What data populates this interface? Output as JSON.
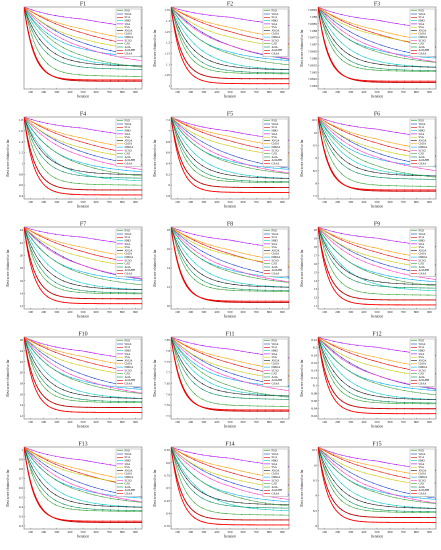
{
  "chart_data": [
    {
      "type": "line",
      "title": "F1",
      "xlabel": "Iteration",
      "ylabel": "",
      "x_ticks": [
        "100",
        "200",
        "300",
        "400",
        "500",
        "600",
        "700",
        "800",
        "900"
      ],
      "y_ticks": [],
      "series": []
    },
    {
      "type": "line",
      "title": "F2",
      "xlabel": "Iteration",
      "ylabel": "Best score obtained so far",
      "x_ticks": [
        "100",
        "200",
        "300",
        "400",
        "500",
        "600",
        "700",
        "800",
        "900"
      ],
      "y_ticks": [
        "1.35",
        "1.3",
        "1.25",
        "1.2",
        "1.15",
        "1.1",
        "1.05",
        "1"
      ],
      "series": []
    },
    {
      "type": "line",
      "title": "F3",
      "xlabel": "Iteration",
      "ylabel": "Best score obtained so far",
      "x_ticks": [
        "100",
        "200",
        "300",
        "400",
        "500",
        "600",
        "700",
        "800",
        "900"
      ],
      "y_ticks": [
        "7.0895",
        "7.089",
        "7.0885",
        "7.088",
        "7.0875",
        "7.087",
        "7.0865",
        "7.086",
        "7.0855",
        "7.085",
        "7.0845",
        "7.084"
      ],
      "series": []
    },
    {
      "type": "line",
      "title": "F4",
      "xlabel": "Iteration",
      "ylabel": "Best score obtained so far",
      "x_ticks": [
        "100",
        "200",
        "300",
        "400",
        "500",
        "600",
        "700",
        "800",
        "900"
      ],
      "y_ticks": [
        "1.8",
        "1.6",
        "1.4",
        "1.2",
        "1",
        "0.8",
        "0.6",
        "0.4"
      ],
      "series": []
    },
    {
      "type": "line",
      "title": "F5",
      "xlabel": "Iteration",
      "ylabel": "Best score obtained so far",
      "x_ticks": [
        "100",
        "200",
        "300",
        "400",
        "500",
        "600",
        "700",
        "800",
        "900"
      ],
      "y_ticks": [
        "7.2",
        "7",
        "6.8",
        "6.6",
        "6.4",
        "6.2",
        "6",
        "5.8"
      ],
      "series": []
    },
    {
      "type": "line",
      "title": "F6",
      "xlabel": "Iteration",
      "ylabel": "Best score obtained so far",
      "x_ticks": [
        "100",
        "200",
        "300",
        "400",
        "500",
        "600",
        "700",
        "800",
        "900"
      ],
      "y_ticks": [
        "10.5",
        "10",
        "9.5",
        "9",
        "8.5",
        "8",
        "7.5"
      ],
      "series": []
    },
    {
      "type": "line",
      "title": "F7",
      "xlabel": "Iteration",
      "ylabel": "Best score obtained so far",
      "x_ticks": [
        "100",
        "200",
        "300",
        "400",
        "500",
        "600",
        "700",
        "800",
        "900"
      ],
      "y_ticks": [
        "24",
        "22",
        "20",
        "18",
        "16",
        "14",
        "12"
      ],
      "series": []
    },
    {
      "type": "line",
      "title": "F8",
      "xlabel": "Iteration",
      "ylabel": "Best score obtained so far",
      "x_ticks": [
        "100",
        "200",
        "300",
        "400",
        "500",
        "600",
        "700",
        "800",
        "900"
      ],
      "y_ticks": [
        "18",
        "16",
        "14",
        "12",
        "10"
      ],
      "series": []
    },
    {
      "type": "line",
      "title": "F9",
      "xlabel": "Iteration",
      "ylabel": "Best score obtained so far",
      "x_ticks": [
        "100",
        "200",
        "300",
        "400",
        "500",
        "600",
        "700",
        "800",
        "900"
      ],
      "y_ticks": [
        "20",
        "19",
        "18",
        "17",
        "16",
        "15",
        "14",
        "13",
        "12",
        "11"
      ],
      "series": []
    },
    {
      "type": "line",
      "title": "F10",
      "xlabel": "Iteration",
      "ylabel": "Best score obtained so far",
      "x_ticks": [
        "100",
        "200",
        "300",
        "400",
        "500",
        "600",
        "700",
        "800",
        "900"
      ],
      "y_ticks": [
        "26",
        "24",
        "22",
        "20",
        "18",
        "16",
        "14",
        "12"
      ],
      "series": []
    },
    {
      "type": "line",
      "title": "F11",
      "xlabel": "Iteration",
      "ylabel": "Best score obtained so far",
      "x_ticks": [
        "100",
        "200",
        "300",
        "400",
        "500",
        "600",
        "700",
        "800",
        "900"
      ],
      "y_ticks": [
        "7.85",
        "7.8",
        "7.75",
        "7.7",
        "7.65",
        "7.6",
        "7.55",
        "7.5"
      ],
      "series": []
    },
    {
      "type": "line",
      "title": "F12",
      "xlabel": "Iteration",
      "ylabel": "Best score obtained so far",
      "x_ticks": [
        "100",
        "200",
        "300",
        "400",
        "500",
        "600",
        "700",
        "800",
        "900"
      ],
      "y_ticks": [
        "8.22",
        "8.2",
        "8.18",
        "8.16",
        "8.14",
        "8.12",
        "8.1",
        "8.08",
        "8.06",
        "8.04",
        "8.02"
      ],
      "series": []
    },
    {
      "type": "line",
      "title": "F13",
      "xlabel": "Iteration",
      "ylabel": "Best score obtained so far",
      "x_ticks": [
        "100",
        "200",
        "300",
        "400",
        "500",
        "600",
        "700",
        "800",
        "900"
      ],
      "y_ticks": [
        "1",
        "0.9",
        "0.8",
        "0.7",
        "0.6",
        "0.5",
        "0.4",
        "0.3",
        "0.2"
      ],
      "series": []
    },
    {
      "type": "line",
      "title": "F14",
      "xlabel": "Iteration",
      "ylabel": "Best score obtained so far",
      "x_ticks": [
        "100",
        "200",
        "300",
        "400",
        "500",
        "600",
        "700",
        "800",
        "900"
      ],
      "y_ticks": [
        "0.65",
        "0.6",
        "0.55",
        "0.5",
        "0.45",
        "0.4",
        "0.35"
      ],
      "series": []
    },
    {
      "type": "line",
      "title": "F15",
      "xlabel": "Iteration",
      "ylabel": "Best score obtained so far",
      "x_ticks": [
        "100",
        "200",
        "300",
        "400",
        "500",
        "600",
        "700",
        "800",
        "900"
      ],
      "y_ticks": [
        "10.5",
        "10",
        "9.5",
        "9",
        "8.5",
        "8"
      ],
      "series": []
    }
  ],
  "legend_entries": [
    "PSO",
    "WOA",
    "SCA",
    "HHO",
    "SOA",
    "SSA",
    "AVOA",
    "ChOA",
    "DMOA",
    "SCSO",
    "GJO",
    "AOA",
    "AOAHH",
    "GSAA"
  ],
  "series_colors": [
    "#2ca02c",
    "#1f3fd0",
    "#e60000",
    "#00c8c8",
    "#b000ff",
    "#c8c800",
    "#1a1a1a",
    "#ff9900",
    "#00aeef",
    "#ff33cc",
    "#3f9f3f",
    "#0a8a5a",
    "#c00000",
    "#ff0000"
  ],
  "curve_style": [
    {
      "s": 1.2,
      "e": 0.16,
      "k": 9,
      "d": 0.02
    },
    {
      "s": 1.0,
      "e": 0.3,
      "k": 2.2,
      "d": 0.05
    },
    {
      "s": 1.0,
      "e": 0.45,
      "k": 1.8,
      "d": 0.1
    },
    {
      "s": 1.0,
      "e": 0.22,
      "k": 4.5,
      "d": 0.02
    },
    {
      "s": 1.0,
      "e": 0.78,
      "k": 3.0,
      "d": 0.25
    },
    {
      "s": 1.0,
      "e": 0.5,
      "k": 3.0,
      "d": 0.15
    },
    {
      "s": 1.0,
      "e": 0.24,
      "k": 6.0,
      "d": 0.02
    },
    {
      "s": 1.0,
      "e": 0.6,
      "k": 2.4,
      "d": 0.2
    },
    {
      "s": 1.0,
      "e": 0.35,
      "k": 4.0,
      "d": 0.1
    },
    {
      "s": 1.0,
      "e": 0.32,
      "k": 2.8,
      "d": 0.15
    },
    {
      "s": 1.0,
      "e": 0.28,
      "k": 3.5,
      "d": 0.12
    },
    {
      "s": 1.0,
      "e": 0.2,
      "k": 7.0,
      "d": 0.02
    },
    {
      "s": 1.0,
      "e": 0.08,
      "k": 11,
      "d": 0.0
    },
    {
      "s": 1.0,
      "e": 0.05,
      "k": 12,
      "d": 0.0
    }
  ]
}
